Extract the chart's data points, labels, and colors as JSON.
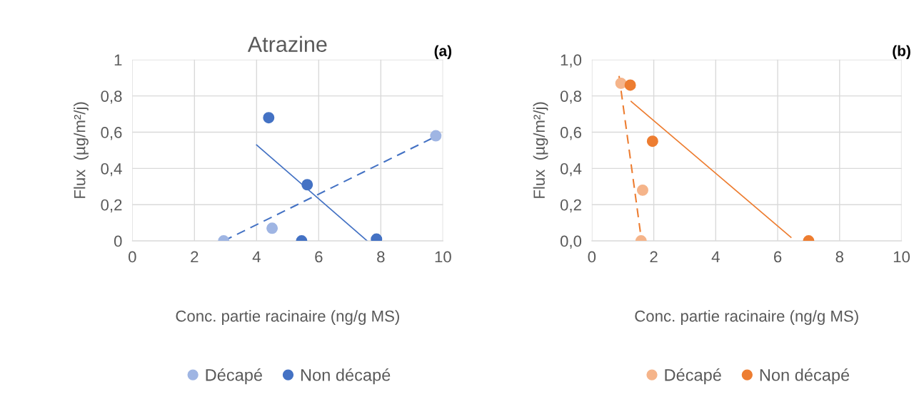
{
  "chart_data": [
    {
      "type": "scatter",
      "title": "Atrazine",
      "xlabel": "Conc. partie racinaire (ng/g MS)",
      "ylabel": "Flux  (µg/m²/j)",
      "annotations": [
        "(a)"
      ],
      "xlim": [
        0,
        10
      ],
      "xticks": [
        0,
        2,
        4,
        6,
        8,
        10
      ],
      "ylim": [
        0,
        1
      ],
      "yticks": [
        0,
        {
          "value": 0.2,
          "label": "0,2"
        },
        {
          "value": 0.4,
          "label": "0,4"
        },
        {
          "value": 0.6,
          "label": "0,6"
        },
        {
          "value": 0.8,
          "label": "0,8"
        },
        1
      ],
      "grid": true,
      "legend": "bottom",
      "series": [
        {
          "name": "Décapé",
          "type": "scatter",
          "marker": "circle",
          "color": "#9fb5e3",
          "x": [
            2.94,
            4.5,
            9.77
          ],
          "values": [
            0,
            0.07,
            0.58
          ]
        },
        {
          "name": "Non décapé",
          "type": "scatter",
          "marker": "circle",
          "color": "#4472c4",
          "x": [
            4.39,
            5.63,
            5.45,
            7.86
          ],
          "values": [
            0.68,
            0.31,
            0,
            0.01
          ]
        },
        {
          "type": "line",
          "line_style": "dashed",
          "color": "#4472c4",
          "x": [
            2.94,
            9.93
          ],
          "values": [
            0,
            0.59
          ]
        },
        {
          "type": "line",
          "line_style": "solid",
          "color": "#4472c4",
          "x": [
            4.0,
            7.56
          ],
          "values": [
            0.53,
            0
          ]
        }
      ]
    },
    {
      "type": "scatter",
      "xlabel": "Conc. partie racinaire (ng/g MS)",
      "ylabel": "Flux  (µg/m²/j)",
      "annotations": [
        "(b)"
      ],
      "xlim": [
        0,
        10
      ],
      "xticks": [
        0,
        2,
        4,
        6,
        8,
        10
      ],
      "ylim": [
        0,
        1
      ],
      "yticks": [
        {
          "value": 0,
          "label": "0,0"
        },
        {
          "value": 0.2,
          "label": "0,2"
        },
        {
          "value": 0.4,
          "label": "0,4"
        },
        {
          "value": 0.6,
          "label": "0,6"
        },
        {
          "value": 0.8,
          "label": "0,8"
        },
        {
          "value": 1,
          "label": "1,0"
        }
      ],
      "grid": true,
      "legend": "bottom",
      "series": [
        {
          "name": "Décapé",
          "type": "scatter",
          "marker": "circle",
          "color": "#f5b48a",
          "x": [
            0.94,
            1.64,
            1.59
          ],
          "values": [
            0.87,
            0.28,
            0
          ]
        },
        {
          "name": "Non décapé",
          "type": "scatter",
          "marker": "circle",
          "color": "#ed7d31",
          "x": [
            1.24,
            1.96,
            7.0
          ],
          "values": [
            0.86,
            0.55,
            0
          ]
        },
        {
          "type": "line",
          "line_style": "dashed",
          "color": "#ed7d31",
          "x": [
            0.88,
            1.59
          ],
          "values": [
            0.91,
            0.02
          ]
        },
        {
          "type": "line",
          "line_style": "solid",
          "color": "#ed7d31",
          "x": [
            1.27,
            6.43
          ],
          "values": [
            0.77,
            0.02
          ]
        }
      ]
    }
  ]
}
